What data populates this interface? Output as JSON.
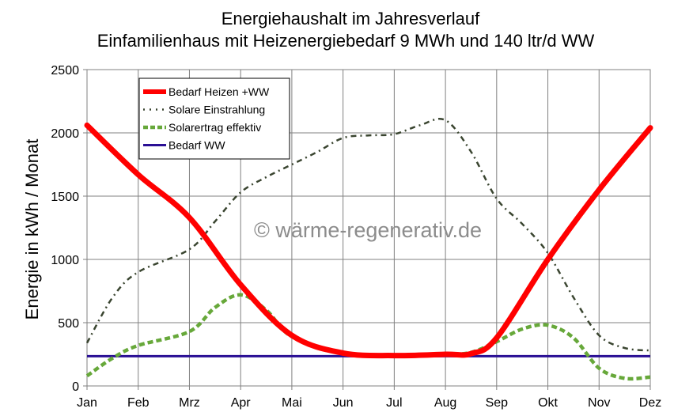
{
  "chart_data": {
    "type": "line",
    "title": "Energiehaushalt im Jahresverlauf",
    "subtitle": "Einfamilienhaus mit Heizenergiebedarf 9 MWh und 140 ltr/d WW",
    "xlabel": "",
    "ylabel": "Energie in kWh / Monat",
    "ylim": [
      0,
      2500
    ],
    "yticks": [
      "0",
      "500",
      "1000",
      "1500",
      "2000",
      "2500"
    ],
    "categories": [
      "Jan",
      "Feb",
      "Mrz",
      "Apr",
      "Mai",
      "Jun",
      "Jul",
      "Aug",
      "Sep",
      "Okt",
      "Nov",
      "Dez"
    ],
    "grid": true,
    "legend_position": "top-left",
    "watermark": "© wärme-regenerativ.de",
    "series": [
      {
        "name": "Bedarf Heizen +WW",
        "color": "#ff0000",
        "style": "solid-thick",
        "x": [
          0,
          1,
          2,
          3,
          4,
          5,
          6,
          7,
          7.5,
          8,
          9,
          10,
          11
        ],
        "values": [
          2060,
          1670,
          1330,
          800,
          400,
          260,
          240,
          250,
          255,
          380,
          1000,
          1550,
          2040
        ]
      },
      {
        "name": "Solare Einstrahlung",
        "color": "#3a4530",
        "style": "dash-dot",
        "x": [
          0,
          0.5,
          1,
          2,
          2.5,
          3,
          3.5,
          4,
          4.5,
          5,
          5.5,
          6,
          6.5,
          7,
          7.5,
          8,
          8.5,
          9,
          9.5,
          10,
          10.5,
          11
        ],
        "values": [
          340,
          700,
          900,
          1080,
          1300,
          1530,
          1650,
          1750,
          1850,
          1960,
          1980,
          1990,
          2060,
          2100,
          1850,
          1480,
          1280,
          1050,
          700,
          400,
          300,
          280
        ]
      },
      {
        "name": "Solarertrag effektiv",
        "color": "#67a83a",
        "style": "dashed",
        "x": [
          0,
          0.5,
          1,
          2,
          2.5,
          3,
          3.5,
          4,
          5,
          6,
          7,
          7.5,
          8,
          8.5,
          9,
          9.5,
          10,
          10.5,
          11
        ],
        "values": [
          80,
          220,
          320,
          430,
          620,
          720,
          600,
          390,
          260,
          245,
          250,
          265,
          350,
          450,
          480,
          380,
          140,
          60,
          70
        ]
      },
      {
        "name": "Bedarf WW",
        "color": "#2a0f94",
        "style": "solid",
        "x": [
          0,
          11
        ],
        "values": [
          235,
          235
        ]
      }
    ]
  }
}
